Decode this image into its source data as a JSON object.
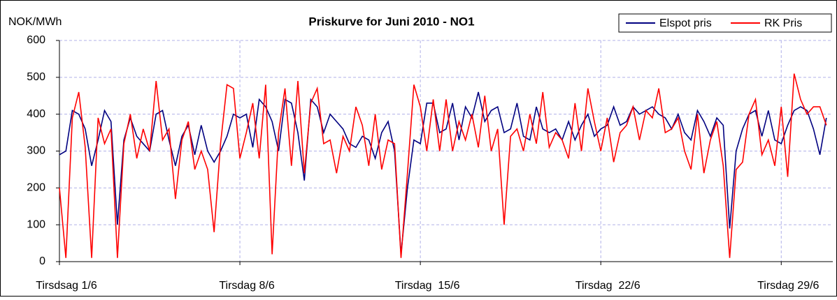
{
  "chart_data": {
    "type": "line",
    "title": "Priskurve for Juni 2010 - NO1",
    "y_label": "NOK/MWh",
    "x": [
      0,
      6,
      12,
      18,
      24,
      30,
      36,
      42,
      48,
      54,
      60,
      66,
      72,
      78,
      84,
      90,
      96,
      102,
      108,
      114,
      120,
      126,
      132,
      138,
      144,
      150,
      156,
      162,
      168,
      174,
      180,
      186,
      192,
      198,
      204,
      210,
      216,
      222,
      228,
      234,
      240,
      246,
      252,
      258,
      264,
      270,
      276,
      282,
      288,
      294,
      300,
      306,
      312,
      318,
      324,
      330,
      336,
      342,
      348,
      354,
      360,
      366,
      372,
      378,
      384,
      390,
      396,
      402,
      408,
      414,
      420,
      426,
      432,
      438,
      444,
      450,
      456,
      462,
      468,
      474,
      480,
      486,
      492,
      498,
      504,
      510,
      516,
      522,
      528,
      534,
      540,
      546,
      552,
      558,
      564,
      570,
      576,
      582,
      588,
      594,
      600,
      606,
      612,
      618,
      624,
      630,
      636,
      642,
      648,
      654,
      660,
      666,
      672,
      678,
      684,
      690,
      696,
      702,
      708,
      714
    ],
    "xlim": [
      0,
      720
    ],
    "xticks": [
      {
        "value": 0,
        "label": "Tirsdsag 1/6"
      },
      {
        "value": 168,
        "label": "Tirsdag 8/6"
      },
      {
        "value": 336,
        "label": "Tirsdag  15/6"
      },
      {
        "value": 504,
        "label": "Tirsdag  22/6"
      },
      {
        "value": 672,
        "label": "Tirsdag 29/6"
      }
    ],
    "ylim": [
      0,
      600
    ],
    "yticks": [
      0,
      100,
      200,
      300,
      400,
      500,
      600
    ],
    "grid": true,
    "legend": "top-right",
    "series": [
      {
        "name": "Elspot pris",
        "color": "#000080",
        "values": [
          290,
          300,
          410,
          400,
          360,
          260,
          330,
          410,
          380,
          100,
          330,
          390,
          340,
          320,
          300,
          400,
          410,
          330,
          260,
          340,
          370,
          290,
          370,
          300,
          270,
          300,
          340,
          400,
          390,
          400,
          310,
          440,
          420,
          380,
          300,
          440,
          430,
          350,
          220,
          440,
          420,
          350,
          400,
          380,
          360,
          320,
          310,
          340,
          330,
          280,
          350,
          380,
          300,
          20,
          200,
          330,
          320,
          430,
          430,
          350,
          360,
          430,
          330,
          420,
          390,
          460,
          380,
          410,
          420,
          350,
          360,
          430,
          340,
          330,
          420,
          360,
          350,
          360,
          330,
          380,
          330,
          370,
          400,
          340,
          360,
          370,
          420,
          370,
          380,
          420,
          400,
          410,
          420,
          400,
          390,
          360,
          400,
          350,
          330,
          410,
          380,
          340,
          390,
          370,
          90,
          300,
          360,
          400,
          410,
          340,
          410,
          330,
          320,
          370,
          410,
          420,
          410,
          360,
          290,
          390
        ]
      },
      {
        "name": "RK Pris",
        "color": "#ff0000",
        "values": [
          200,
          10,
          390,
          460,
          310,
          10,
          390,
          320,
          360,
          10,
          320,
          400,
          280,
          360,
          300,
          490,
          330,
          360,
          170,
          330,
          380,
          250,
          300,
          250,
          80,
          320,
          480,
          470,
          280,
          350,
          430,
          280,
          480,
          20,
          350,
          470,
          260,
          490,
          240,
          430,
          470,
          320,
          330,
          240,
          340,
          300,
          420,
          370,
          260,
          400,
          250,
          330,
          320,
          10,
          240,
          480,
          420,
          300,
          440,
          300,
          440,
          300,
          380,
          330,
          400,
          310,
          450,
          300,
          360,
          100,
          340,
          360,
          300,
          400,
          320,
          460,
          310,
          350,
          330,
          280,
          430,
          300,
          470,
          380,
          300,
          390,
          270,
          350,
          370,
          420,
          330,
          410,
          390,
          470,
          350,
          360,
          390,
          300,
          250,
          400,
          240,
          330,
          380,
          260,
          10,
          250,
          270,
          400,
          440,
          290,
          330,
          260,
          420,
          230,
          510,
          440,
          400,
          420,
          420,
          370
        ]
      }
    ]
  }
}
